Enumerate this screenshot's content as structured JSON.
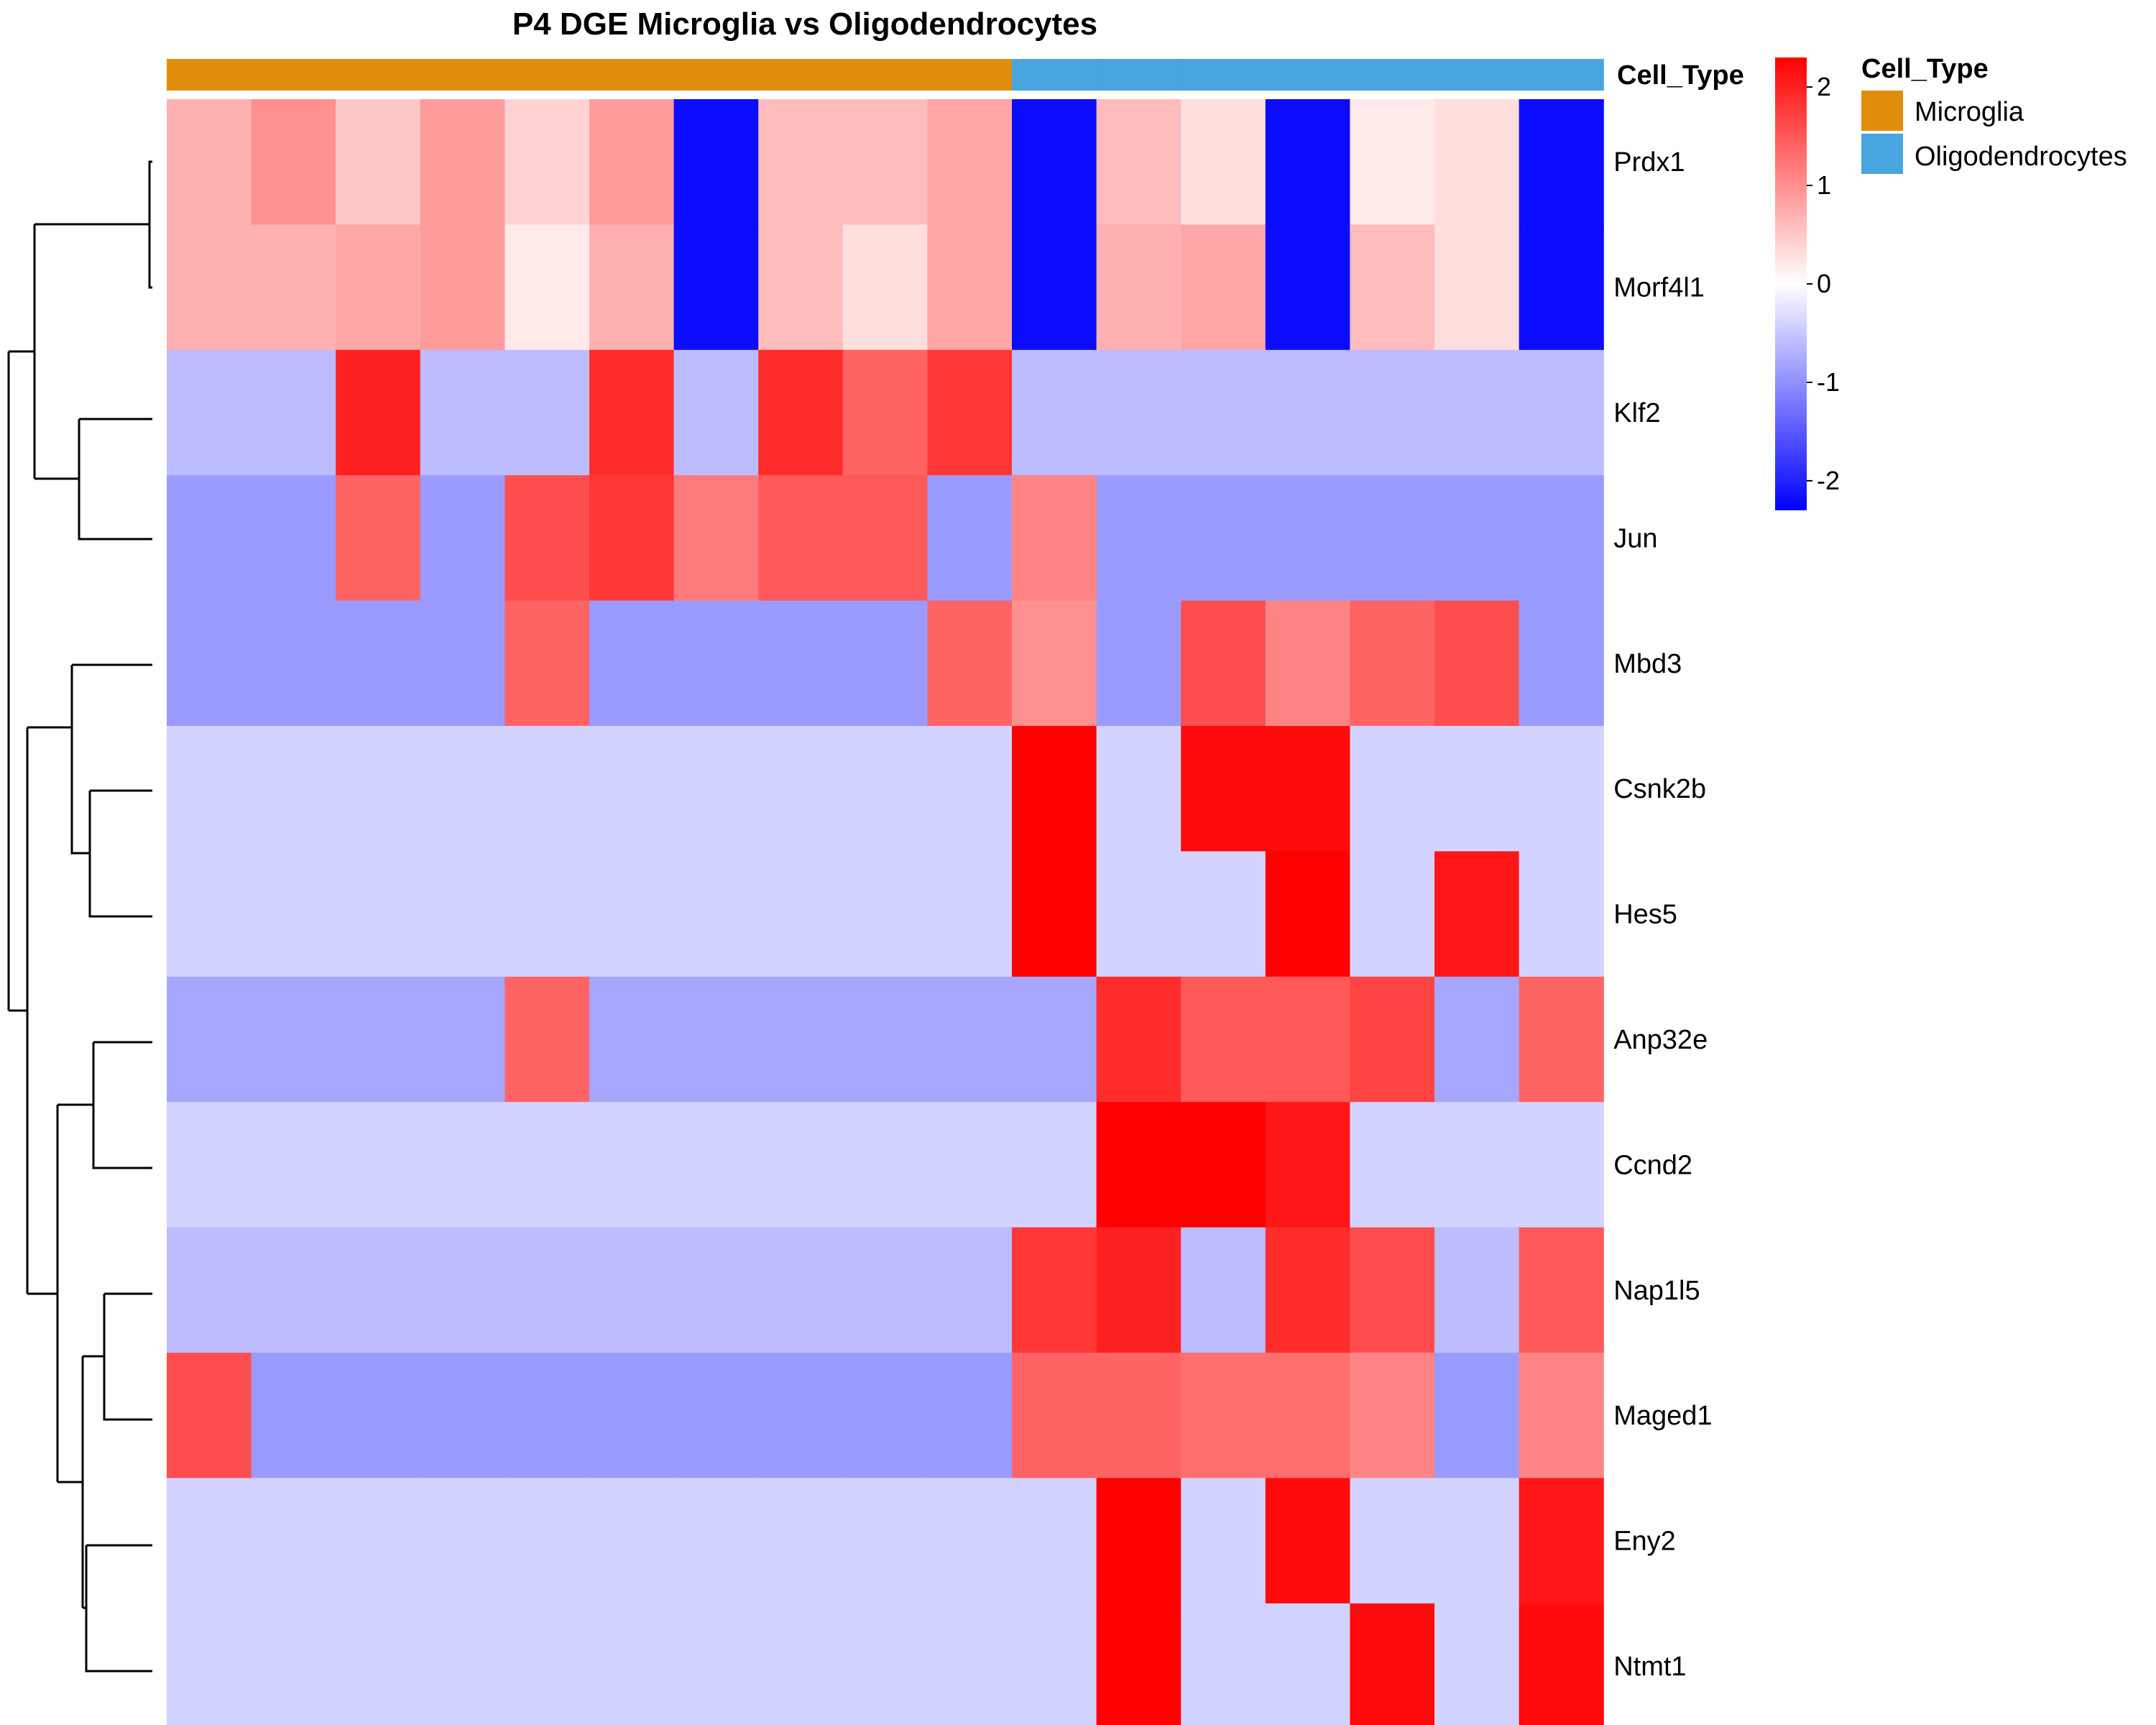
{
  "chart_data": {
    "type": "heatmap",
    "title": "P4 DGE Microglia vs Oligodendrocytes",
    "annotation_label": "Cell_Type",
    "legend_title": "Cell_Type",
    "legend_entries": [
      {
        "name": "Microglia",
        "color": "#E08E0B"
      },
      {
        "name": "Oligodendrocytes",
        "color": "#48A5E0"
      }
    ],
    "columns_cell_type": [
      "Microglia",
      "Microglia",
      "Microglia",
      "Microglia",
      "Microglia",
      "Microglia",
      "Microglia",
      "Microglia",
      "Microglia",
      "Microglia",
      "Oligodendrocytes",
      "Oligodendrocytes",
      "Oligodendrocytes",
      "Oligodendrocytes",
      "Oligodendrocytes",
      "Oligodendrocytes",
      "Oligodendrocytes"
    ],
    "rows": [
      "Prdx1",
      "Morf4l1",
      "Klf2",
      "Jun",
      "Mbd3",
      "Csnk2b",
      "Hes5",
      "Anp32e",
      "Ccnd2",
      "Nap1l5",
      "Maged1",
      "Eny2",
      "Ntmt1"
    ],
    "values": [
      [
        0.7,
        1.0,
        0.5,
        0.9,
        0.4,
        0.9,
        -2.2,
        0.6,
        0.6,
        0.8,
        -2.2,
        0.6,
        0.3,
        -2.2,
        0.2,
        0.3,
        -2.2
      ],
      [
        0.7,
        0.7,
        0.8,
        0.9,
        0.2,
        0.7,
        -2.2,
        0.6,
        0.3,
        0.8,
        -2.2,
        0.7,
        0.8,
        -2.2,
        0.6,
        0.3,
        -2.2
      ],
      [
        -0.6,
        -0.6,
        2.0,
        -0.6,
        -0.6,
        1.9,
        -0.6,
        1.9,
        1.4,
        1.8,
        -0.6,
        -0.6,
        -0.6,
        -0.6,
        -0.6,
        -0.6,
        -0.6
      ],
      [
        -0.9,
        -0.9,
        1.4,
        -0.9,
        1.6,
        1.8,
        1.2,
        1.5,
        1.5,
        -0.9,
        1.1,
        -0.9,
        -0.9,
        -0.9,
        -0.9,
        -0.9,
        -0.9
      ],
      [
        -0.9,
        -0.9,
        -0.9,
        -0.9,
        1.4,
        -0.9,
        -0.9,
        -0.9,
        -0.9,
        1.4,
        1.0,
        -0.9,
        1.6,
        1.1,
        1.4,
        1.6,
        -0.9
      ],
      [
        -0.4,
        -0.4,
        -0.4,
        -0.4,
        -0.4,
        -0.4,
        -0.4,
        -0.4,
        -0.4,
        -0.4,
        2.3,
        -0.4,
        2.2,
        2.2,
        -0.4,
        -0.4,
        -0.4
      ],
      [
        -0.4,
        -0.4,
        -0.4,
        -0.4,
        -0.4,
        -0.4,
        -0.4,
        -0.4,
        -0.4,
        -0.4,
        2.3,
        -0.4,
        -0.4,
        2.3,
        -0.4,
        2.1,
        -0.4
      ],
      [
        -0.8,
        -0.8,
        -0.8,
        -0.8,
        1.4,
        -0.8,
        -0.8,
        -0.8,
        -0.8,
        -0.8,
        -0.8,
        1.9,
        1.5,
        1.5,
        1.7,
        -0.8,
        1.4
      ],
      [
        -0.4,
        -0.4,
        -0.4,
        -0.4,
        -0.4,
        -0.4,
        -0.4,
        -0.4,
        -0.4,
        -0.4,
        -0.4,
        2.3,
        2.3,
        2.1,
        -0.4,
        -0.4,
        -0.4
      ],
      [
        -0.6,
        -0.6,
        -0.6,
        -0.6,
        -0.6,
        -0.6,
        -0.6,
        -0.6,
        -0.6,
        -0.6,
        1.8,
        2.0,
        -0.6,
        1.9,
        1.6,
        -0.6,
        1.5
      ],
      [
        1.6,
        -0.9,
        -0.9,
        -0.9,
        -0.9,
        -0.9,
        -0.9,
        -0.9,
        -0.9,
        -0.9,
        1.4,
        1.4,
        1.3,
        1.3,
        1.1,
        -0.9,
        1.1
      ],
      [
        -0.4,
        -0.4,
        -0.4,
        -0.4,
        -0.4,
        -0.4,
        -0.4,
        -0.4,
        -0.4,
        -0.4,
        -0.4,
        2.3,
        -0.4,
        2.2,
        -0.4,
        -0.4,
        2.1
      ],
      [
        -0.4,
        -0.4,
        -0.4,
        -0.4,
        -0.4,
        -0.4,
        -0.4,
        -0.4,
        -0.4,
        -0.4,
        -0.4,
        2.3,
        -0.4,
        -0.4,
        2.2,
        -0.4,
        2.2
      ]
    ],
    "color_scale": {
      "min": -2.3,
      "max": 2.3,
      "low": "#0000FF",
      "mid": "#FFFFFF",
      "high": "#FF0000"
    },
    "colorbar_ticks": [
      2,
      1,
      0,
      -1,
      -2
    ],
    "colorbar_tick_labels": [
      "2",
      "1",
      "0",
      "-1",
      "-2"
    ]
  }
}
